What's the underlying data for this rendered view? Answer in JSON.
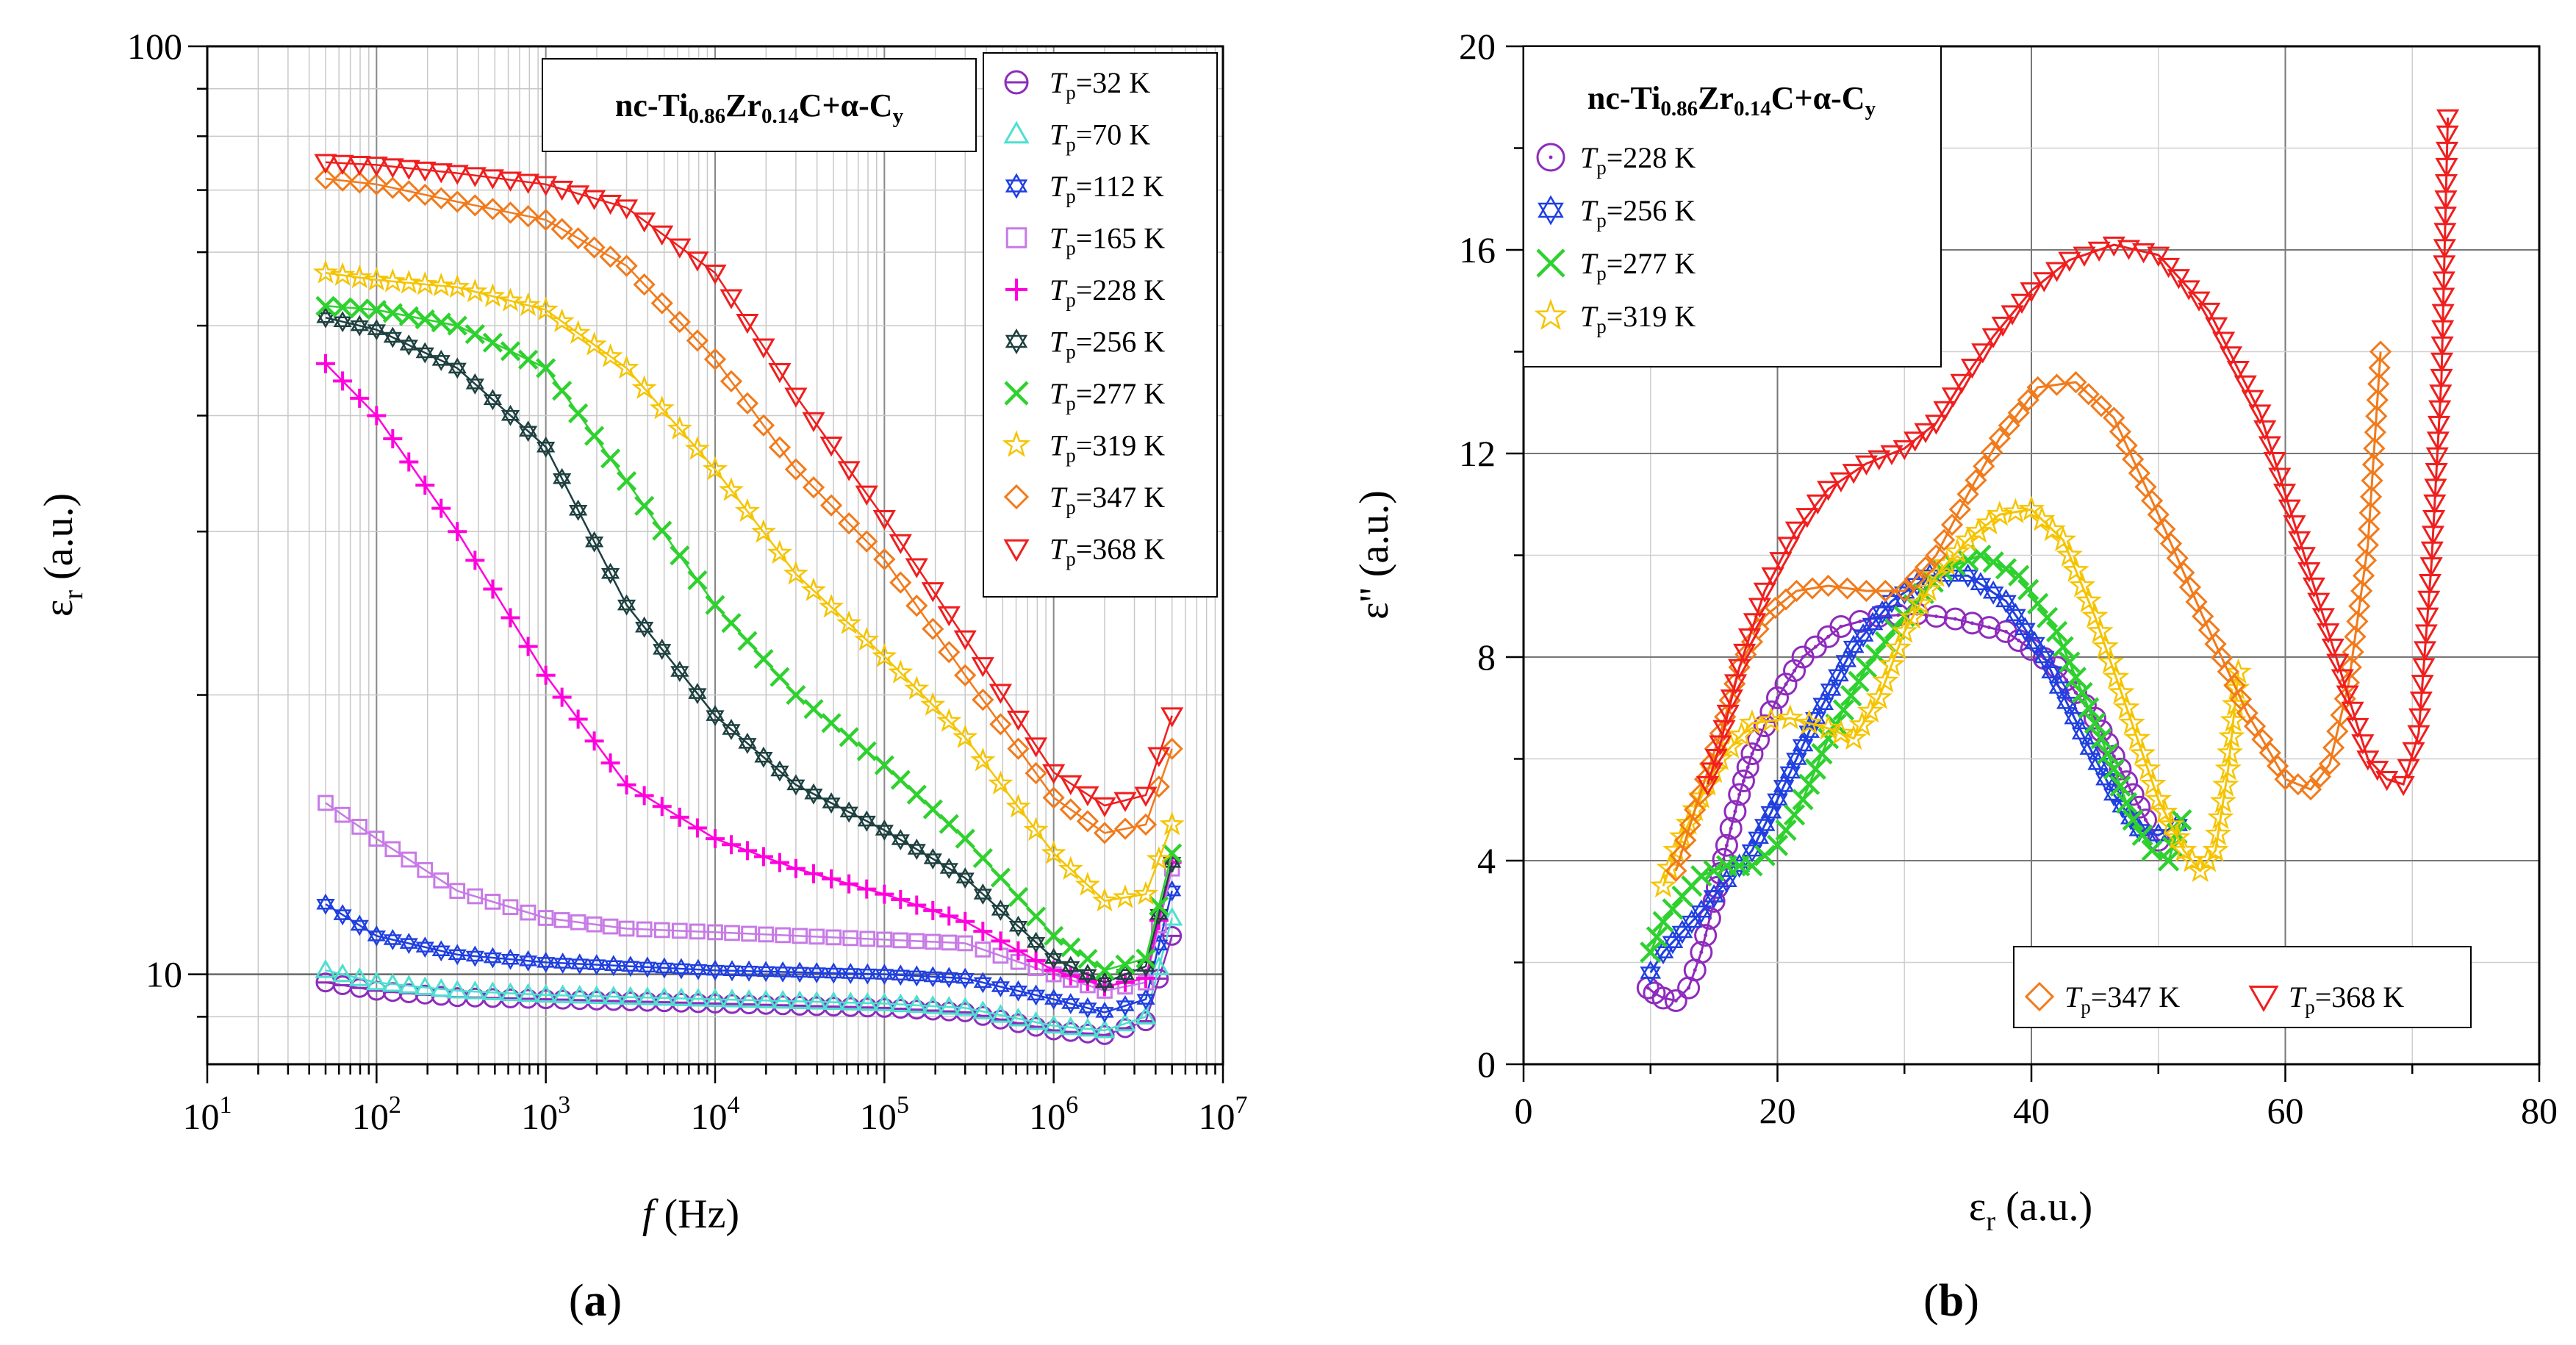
{
  "panels": {
    "a": {
      "label": "(a)",
      "label_letter": "a"
    },
    "b": {
      "label": "(b)",
      "label_letter": "b"
    }
  },
  "chart_data": [
    {
      "id": "a",
      "type": "line",
      "title": "nc-Ti0.86Zr0.14C+α-Cy",
      "title_parts": {
        "prefix": "nc-Ti",
        "ti_sub": "0.86",
        "zr": "Zr",
        "zr_sub": "0.14",
        "suffix": "C+α-C",
        "cy_sub": "y"
      },
      "xlabel": "f (Hz)",
      "xlabel_parts": {
        "var": "f",
        "unit": " (Hz)"
      },
      "ylabel": "εr (a.u.)",
      "ylabel_parts": {
        "sym": "ε",
        "sub": "r",
        "unit": " (a.u.)"
      },
      "xscale": "log",
      "yscale": "log",
      "xlim": [
        10,
        10000000
      ],
      "ylim": [
        8,
        100
      ],
      "x_ticks": [
        {
          "base": "10",
          "exp": "1"
        },
        {
          "base": "10",
          "exp": "2"
        },
        {
          "base": "10",
          "exp": "3"
        },
        {
          "base": "10",
          "exp": "4"
        },
        {
          "base": "10",
          "exp": "5"
        },
        {
          "base": "10",
          "exp": "6"
        },
        {
          "base": "10",
          "exp": "7"
        }
      ],
      "y_ticks": [
        "10",
        "100"
      ],
      "grid": true,
      "legend_position": "top-right",
      "series": [
        {
          "name": "Tp=32 K",
          "temp": "32 K",
          "color": "#8e2bbd",
          "marker": "circle-bar",
          "x": [
            50,
            100,
            300,
            1000,
            10000,
            100000,
            300000,
            1000000,
            2000000,
            3500000,
            5000000
          ],
          "y": [
            9.8,
            9.6,
            9.45,
            9.4,
            9.3,
            9.2,
            9.1,
            8.7,
            8.6,
            8.9,
            11.0
          ]
        },
        {
          "name": "Tp=70 K",
          "temp": "70 K",
          "color": "#4de0d0",
          "marker": "triangle-up",
          "x": [
            50,
            100,
            300,
            1000,
            10000,
            100000,
            300000,
            1000000,
            2000000,
            3500000,
            5000000
          ],
          "y": [
            10.1,
            9.8,
            9.6,
            9.5,
            9.4,
            9.3,
            9.2,
            8.8,
            8.7,
            9.0,
            11.5
          ]
        },
        {
          "name": "Tp=112 K",
          "temp": "112 K",
          "color": "#1f3fe0",
          "marker": "star-of-david",
          "x": [
            50,
            100,
            300,
            1000,
            10000,
            100000,
            300000,
            1000000,
            2000000,
            3500000,
            5000000
          ],
          "y": [
            11.9,
            11.0,
            10.5,
            10.3,
            10.1,
            10.0,
            9.9,
            9.4,
            9.1,
            9.4,
            12.3
          ]
        },
        {
          "name": "Tp=165 K",
          "temp": "165 K",
          "color": "#c77ae6",
          "marker": "square",
          "x": [
            50,
            100,
            300,
            1000,
            3000,
            10000,
            100000,
            300000,
            1000000,
            2000000,
            3500000,
            5000000
          ],
          "y": [
            15.3,
            14.0,
            12.3,
            11.5,
            11.2,
            11.1,
            10.9,
            10.8,
            10.0,
            9.6,
            9.8,
            13.0
          ]
        },
        {
          "name": "Tp=228 K",
          "temp": "228 K",
          "color": "#ff00dd",
          "marker": "plus",
          "x": [
            50,
            100,
            300,
            1000,
            3000,
            10000,
            30000,
            100000,
            300000,
            1000000,
            2000000,
            3500000,
            5000000
          ],
          "y": [
            45.5,
            40.0,
            30.0,
            21.0,
            16.0,
            14.0,
            13.0,
            12.2,
            11.4,
            10.1,
            9.7,
            9.9,
            13.2
          ]
        },
        {
          "name": "Tp=256 K",
          "temp": "256 K",
          "color": "#1e4040",
          "marker": "star-of-david",
          "x": [
            50,
            100,
            300,
            1000,
            3000,
            10000,
            30000,
            100000,
            300000,
            1000000,
            2000000,
            3500000,
            5000000
          ],
          "y": [
            51.0,
            49.5,
            45.0,
            37.0,
            25.0,
            19.0,
            16.0,
            14.3,
            12.7,
            10.4,
            9.8,
            10.2,
            13.2
          ]
        },
        {
          "name": "Tp=277 K",
          "temp": "277 K",
          "color": "#2ed12e",
          "marker": "x",
          "x": [
            50,
            100,
            300,
            1000,
            3000,
            10000,
            30000,
            100000,
            300000,
            1000000,
            2000000,
            3500000,
            5000000
          ],
          "y": [
            52.5,
            52.0,
            50.0,
            45.0,
            34.0,
            25.0,
            20.0,
            16.8,
            14.0,
            11.0,
            10.1,
            10.4,
            13.5
          ]
        },
        {
          "name": "Tp=319 K",
          "temp": "319 K",
          "color": "#f5c400",
          "marker": "star",
          "x": [
            50,
            100,
            300,
            1000,
            3000,
            10000,
            30000,
            100000,
            300000,
            1000000,
            2000000,
            3500000,
            5000000
          ],
          "y": [
            57.0,
            56.0,
            55.0,
            52.0,
            45.0,
            35.0,
            27.0,
            22.0,
            18.0,
            13.5,
            12.0,
            12.2,
            14.5
          ]
        },
        {
          "name": "Tp=347 K",
          "temp": "347 K",
          "color": "#f27a1a",
          "marker": "diamond",
          "x": [
            50,
            100,
            300,
            1000,
            3000,
            10000,
            30000,
            100000,
            300000,
            1000000,
            2000000,
            3500000,
            5000000
          ],
          "y": [
            72.0,
            71.0,
            68.0,
            65.0,
            58.0,
            46.0,
            35.0,
            28.0,
            21.0,
            15.5,
            14.2,
            14.5,
            17.5
          ]
        },
        {
          "name": "Tp=368 K",
          "temp": "368 K",
          "color": "#f01e1e",
          "marker": "triangle-down",
          "x": [
            50,
            100,
            300,
            1000,
            3000,
            10000,
            30000,
            100000,
            300000,
            1000000,
            2000000,
            3500000,
            5000000
          ],
          "y": [
            75.0,
            74.5,
            73.0,
            71.0,
            67.0,
            57.0,
            42.0,
            31.0,
            23.0,
            16.5,
            15.2,
            15.6,
            19.0
          ]
        }
      ]
    },
    {
      "id": "b",
      "type": "line",
      "title": "nc-Ti0.86Zr0.14C+α-Cy",
      "title_parts": {
        "prefix": "nc-Ti",
        "ti_sub": "0.86",
        "zr": "Zr",
        "zr_sub": "0.14",
        "suffix": "C+α-C",
        "cy_sub": "y"
      },
      "xlabel": "εr (a.u.)",
      "xlabel_parts": {
        "sym": "ε",
        "sub": "r",
        "unit": " (a.u.)"
      },
      "ylabel": "ε'' (a.u.)",
      "ylabel_parts": {
        "sym": "ε''",
        "unit": " (a.u.)"
      },
      "xlim": [
        0,
        80
      ],
      "ylim": [
        0,
        20
      ],
      "x_ticks": [
        "0",
        "20",
        "40",
        "60",
        "80"
      ],
      "y_ticks": [
        "0",
        "4",
        "8",
        "12",
        "16",
        "20"
      ],
      "grid": true,
      "legend_position": "top-left and bottom-right",
      "series": [
        {
          "name": "Tp=228 K",
          "temp": "228 K",
          "color": "#8e2bbd",
          "marker": "circle-dot",
          "legend": "top",
          "x": [
            9.8,
            10.3,
            11.0,
            12.0,
            13.0,
            14.0,
            15.0,
            16.0,
            17.0,
            18.0,
            20.0,
            22.0,
            25.0,
            28.0,
            31.0,
            34.0,
            38.0,
            42.0,
            45.0,
            47.0,
            49.0,
            50.0
          ],
          "y": [
            1.5,
            1.4,
            1.3,
            1.25,
            1.5,
            2.2,
            3.2,
            4.3,
            5.3,
            6.1,
            7.2,
            8.0,
            8.6,
            8.8,
            8.85,
            8.75,
            8.5,
            7.8,
            6.8,
            5.8,
            4.8,
            4.4
          ]
        },
        {
          "name": "Tp=256 K",
          "temp": "256 K",
          "color": "#1f3fe0",
          "marker": "star-of-david",
          "legend": "top",
          "x": [
            10.0,
            11.0,
            12.5,
            14.0,
            16.0,
            18.0,
            20.0,
            23.0,
            26.0,
            29.0,
            32.0,
            35.0,
            38.0,
            41.0,
            44.0,
            46.5,
            48.5,
            50.0,
            51.5
          ],
          "y": [
            1.8,
            2.2,
            2.6,
            3.0,
            3.6,
            4.2,
            5.2,
            6.8,
            8.2,
            9.1,
            9.6,
            9.6,
            9.1,
            8.0,
            6.5,
            5.3,
            4.6,
            4.5,
            4.7
          ]
        },
        {
          "name": "Tp=277 K",
          "temp": "277 K",
          "color": "#2ed12e",
          "marker": "x",
          "legend": "top",
          "x": [
            10.0,
            11.0,
            12.5,
            14.0,
            16.0,
            18.0,
            20.0,
            22.0,
            24.0,
            27.0,
            30.0,
            33.0,
            36.0,
            39.0,
            42.0,
            44.5,
            46.5,
            48.0,
            49.5,
            50.8,
            51.8
          ],
          "y": [
            2.2,
            2.8,
            3.3,
            3.7,
            3.9,
            3.9,
            4.3,
            5.2,
            6.4,
            7.8,
            8.8,
            9.7,
            10.0,
            9.6,
            8.5,
            7.0,
            5.8,
            4.8,
            4.2,
            4.0,
            4.8
          ]
        },
        {
          "name": "Tp=319 K",
          "temp": "319 K",
          "color": "#f5c400",
          "marker": "star",
          "legend": "top",
          "x": [
            11.0,
            12.0,
            13.5,
            15.5,
            18.0,
            21.0,
            24.0,
            26.0,
            28.0,
            30.0,
            32.5,
            35.0,
            37.5,
            40.0,
            42.5,
            45.0,
            47.5,
            50.0,
            52.0,
            53.3,
            54.5,
            55.5,
            56.3
          ],
          "y": [
            3.5,
            4.2,
            5.0,
            6.0,
            6.7,
            6.8,
            6.6,
            6.4,
            7.2,
            8.5,
            9.6,
            10.3,
            10.8,
            10.9,
            10.3,
            8.8,
            7.0,
            5.2,
            4.2,
            3.8,
            4.2,
            5.8,
            7.7
          ]
        },
        {
          "name": "Tp=347 K",
          "temp": "347 K",
          "color": "#f27a1a",
          "marker": "diamond",
          "legend": "bottom",
          "x": [
            12.0,
            13.5,
            15.5,
            17.0,
            19.0,
            21.5,
            24.0,
            27.0,
            30.0,
            32.5,
            35.0,
            37.5,
            40.5,
            43.5,
            46.5,
            50.0,
            53.5,
            57.0,
            60.0,
            62.0,
            63.5,
            65.0,
            66.5,
            67.5
          ],
          "y": [
            3.8,
            5.0,
            6.5,
            7.8,
            8.8,
            9.3,
            9.4,
            9.3,
            9.3,
            10.0,
            11.2,
            12.3,
            13.3,
            13.4,
            12.7,
            10.8,
            8.8,
            6.9,
            5.6,
            5.4,
            5.9,
            7.5,
            10.2,
            14.0
          ]
        },
        {
          "name": "Tp=368 K",
          "temp": "368 K",
          "color": "#f01e1e",
          "marker": "triangle-down",
          "legend": "bottom",
          "x": [
            14.5,
            15.5,
            17.0,
            19.0,
            21.5,
            24.0,
            27.0,
            30.0,
            32.5,
            34.5,
            37.0,
            40.0,
            43.0,
            46.5,
            50.0,
            54.0,
            58.0,
            61.5,
            64.5,
            66.5,
            68.0,
            69.3,
            70.5,
            71.5,
            72.3,
            72.8
          ],
          "y": [
            5.5,
            6.3,
            7.8,
            9.3,
            10.5,
            11.3,
            11.8,
            12.1,
            12.6,
            13.4,
            14.3,
            15.2,
            15.8,
            16.1,
            15.9,
            14.8,
            12.8,
            10.0,
            7.6,
            6.0,
            5.6,
            5.5,
            6.5,
            9.8,
            13.5,
            18.6
          ]
        }
      ]
    }
  ]
}
